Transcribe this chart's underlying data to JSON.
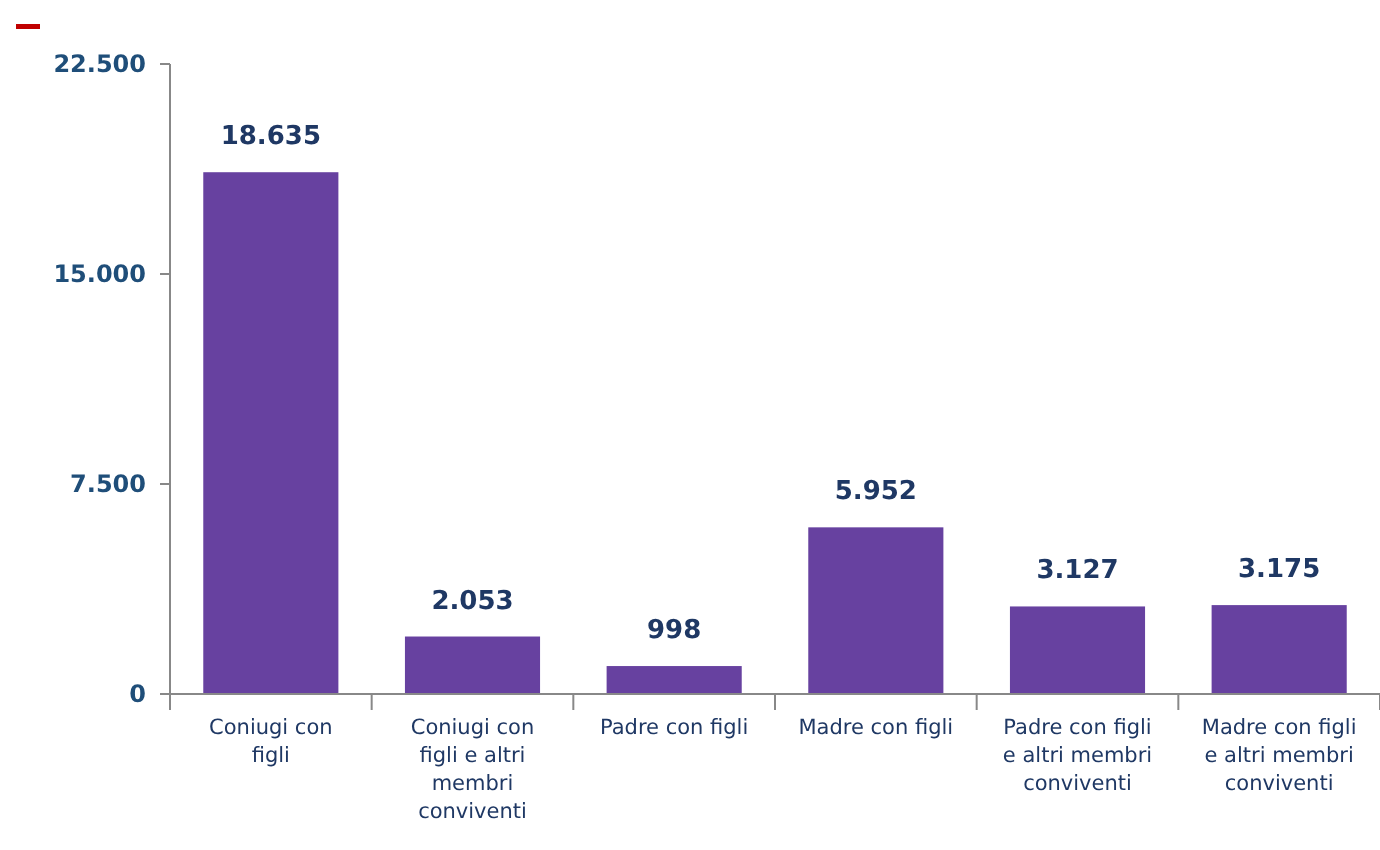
{
  "chart_data": {
    "type": "bar",
    "categories": [
      "Coniugi con figli",
      "Coniugi con figli e altri membri conviventi",
      "Padre con figli",
      "Madre con figli",
      "Padre con figli e altri membri conviventi",
      "Madre con figli e altri membri conviventi"
    ],
    "values": [
      18635,
      2053,
      998,
      5952,
      3127,
      3175
    ],
    "value_labels": [
      "18.635",
      "2.053",
      "998",
      "5.952",
      "3.127",
      "3.175"
    ],
    "color": "#6741a0",
    "ylim": [
      0,
      22500
    ],
    "yticks": [
      {
        "value": 0,
        "label": "0"
      },
      {
        "value": 7500,
        "label": "7.500"
      },
      {
        "value": 15000,
        "label": "15.000"
      },
      {
        "value": 22500,
        "label": "22.500"
      }
    ],
    "grid": false
  }
}
